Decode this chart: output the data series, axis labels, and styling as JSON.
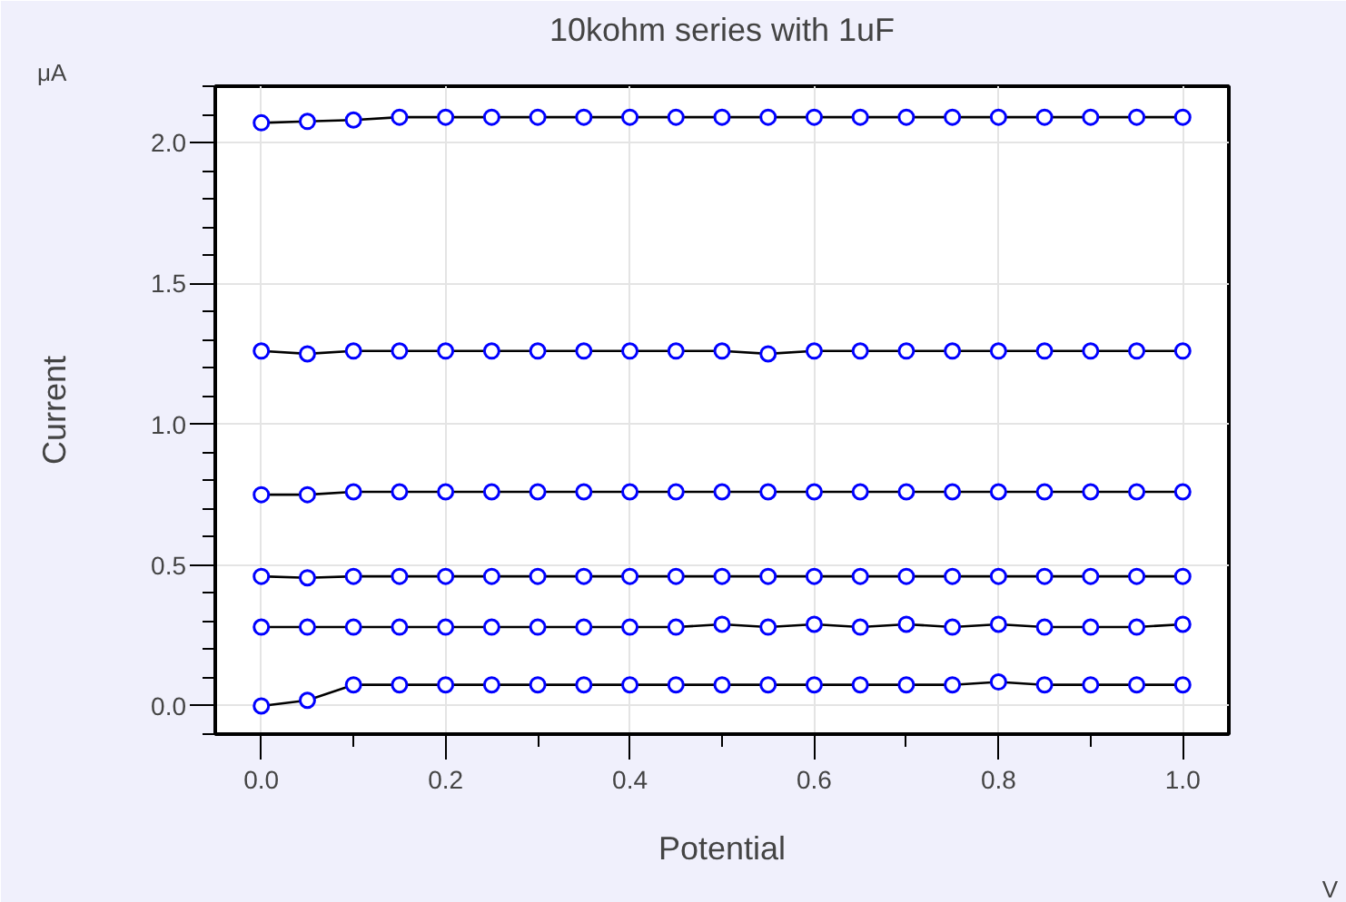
{
  "chart_data": {
    "type": "line",
    "title": "10kohm series with 1uF",
    "xlabel": "Potential",
    "ylabel": "Current",
    "annotations": [
      "μA",
      "V"
    ],
    "x": [
      0,
      0.05,
      0.1,
      0.15,
      0.2,
      0.25,
      0.3,
      0.35,
      0.4,
      0.45,
      0.5,
      0.55,
      0.6,
      0.65,
      0.7,
      0.75,
      0.8,
      0.85,
      0.9,
      0.95,
      1.0
    ],
    "series": [
      {
        "color": "#0000ff",
        "values": [
          2.07,
          2.075,
          2.08,
          2.09,
          2.09,
          2.09,
          2.09,
          2.09,
          2.09,
          2.09,
          2.09,
          2.09,
          2.09,
          2.09,
          2.09,
          2.09,
          2.09,
          2.09,
          2.09,
          2.09,
          2.09
        ]
      },
      {
        "color": "#0000ff",
        "values": [
          1.26,
          1.25,
          1.26,
          1.26,
          1.26,
          1.26,
          1.26,
          1.26,
          1.26,
          1.26,
          1.26,
          1.25,
          1.26,
          1.26,
          1.26,
          1.26,
          1.26,
          1.26,
          1.26,
          1.26,
          1.26
        ]
      },
      {
        "color": "#0000ff",
        "values": [
          0.75,
          0.75,
          0.76,
          0.76,
          0.76,
          0.76,
          0.76,
          0.76,
          0.76,
          0.76,
          0.76,
          0.76,
          0.76,
          0.76,
          0.76,
          0.76,
          0.76,
          0.76,
          0.76,
          0.76,
          0.76
        ]
      },
      {
        "color": "#0000ff",
        "values": [
          0.46,
          0.455,
          0.46,
          0.46,
          0.46,
          0.46,
          0.46,
          0.46,
          0.46,
          0.46,
          0.46,
          0.46,
          0.46,
          0.46,
          0.46,
          0.46,
          0.46,
          0.46,
          0.46,
          0.46,
          0.46
        ]
      },
      {
        "color": "#0000ff",
        "values": [
          0.28,
          0.28,
          0.28,
          0.28,
          0.28,
          0.28,
          0.28,
          0.28,
          0.28,
          0.28,
          0.29,
          0.28,
          0.29,
          0.28,
          0.29,
          0.28,
          0.29,
          0.28,
          0.28,
          0.28,
          0.29
        ]
      },
      {
        "color": "#0000ff",
        "values": [
          0.0,
          0.02,
          0.075,
          0.075,
          0.075,
          0.075,
          0.075,
          0.075,
          0.075,
          0.075,
          0.075,
          0.075,
          0.075,
          0.075,
          0.075,
          0.075,
          0.085,
          0.075,
          0.075,
          0.075,
          0.075
        ]
      }
    ],
    "xlim": [
      -0.05,
      1.05
    ],
    "ylim": [
      -0.1,
      2.2
    ],
    "xticks": [
      {
        "value": 0,
        "label": "0.0"
      },
      0.2,
      0.4,
      0.6,
      0.8,
      {
        "value": 1,
        "label": "1.0"
      }
    ],
    "yticks": [
      {
        "value": 0,
        "label": "0.0"
      },
      0.5,
      {
        "value": 1,
        "label": "1.0"
      },
      1.5,
      {
        "value": 2,
        "label": "2.0"
      }
    ],
    "grid": true,
    "marker": "circle",
    "line_style": "solid"
  }
}
